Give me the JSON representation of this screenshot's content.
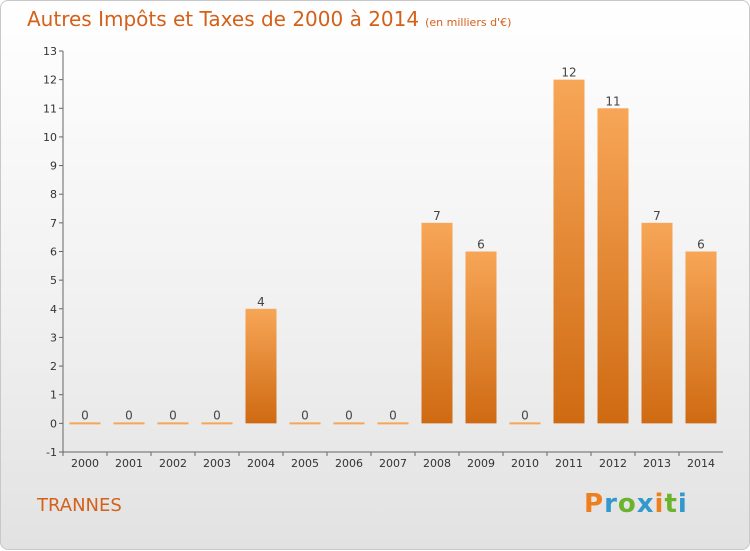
{
  "chart_data": {
    "type": "bar",
    "title": "Autres Impôts et Taxes de 2000 à 2014",
    "subtitle": "(en milliers d'€)",
    "categories": [
      "2000",
      "2001",
      "2002",
      "2003",
      "2004",
      "2005",
      "2006",
      "2007",
      "2008",
      "2009",
      "2010",
      "2011",
      "2012",
      "2013",
      "2014"
    ],
    "values": [
      0,
      0,
      0,
      0,
      4,
      0,
      0,
      0,
      7,
      6,
      0,
      12,
      11,
      7,
      6
    ],
    "ylim": [
      -1,
      13
    ],
    "yticks": [
      -1,
      0,
      1,
      2,
      3,
      4,
      5,
      6,
      7,
      8,
      9,
      10,
      11,
      12,
      13
    ],
    "grid": false,
    "bar_color": "#f08c30",
    "bar_color_light": "#f7a657"
  },
  "footer": {
    "place": "TRANNES",
    "logo": "Proxiti",
    "logo_colors": [
      "#ee7f1e",
      "#3399cc",
      "#6ab42d",
      "#3399cc",
      "#ee7f1e",
      "#6ab42d",
      "#3399cc"
    ]
  }
}
